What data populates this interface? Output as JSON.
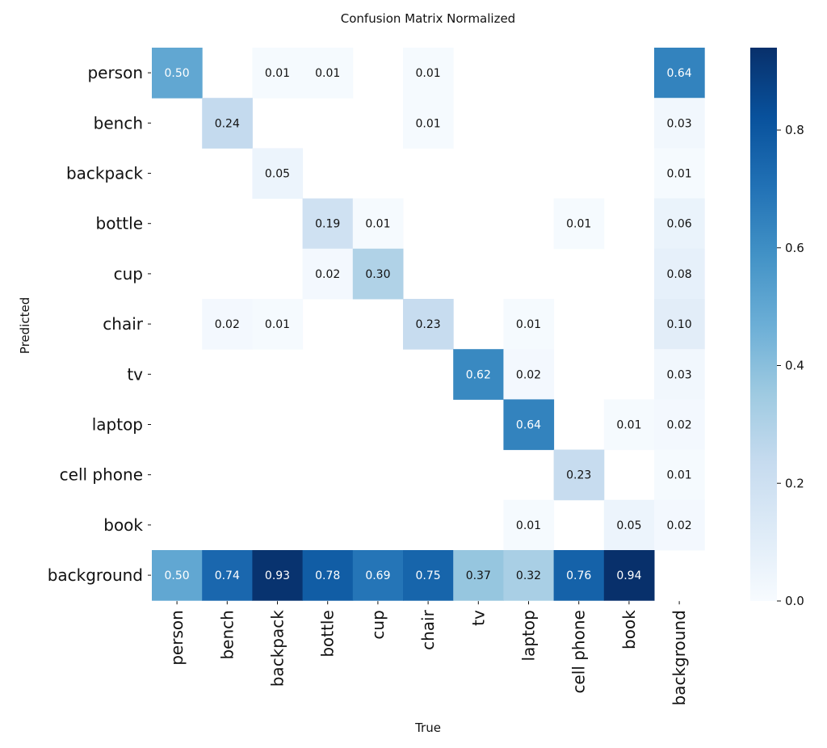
{
  "chart_data": {
    "type": "heatmap",
    "title": "Confusion Matrix Normalized",
    "xlabel": "True",
    "ylabel": "Predicted",
    "x_categories": [
      "person",
      "bench",
      "backpack",
      "bottle",
      "cup",
      "chair",
      "tv",
      "laptop",
      "cell phone",
      "book",
      "background"
    ],
    "y_categories": [
      "person",
      "bench",
      "backpack",
      "bottle",
      "cup",
      "chair",
      "tv",
      "laptop",
      "cell phone",
      "book",
      "background"
    ],
    "values": [
      [
        0.5,
        null,
        0.01,
        0.01,
        null,
        0.01,
        null,
        null,
        null,
        null,
        0.64
      ],
      [
        null,
        0.24,
        null,
        null,
        null,
        0.01,
        null,
        null,
        null,
        null,
        0.03
      ],
      [
        null,
        null,
        0.05,
        null,
        null,
        null,
        null,
        null,
        null,
        null,
        0.01
      ],
      [
        null,
        null,
        null,
        0.19,
        0.01,
        null,
        null,
        null,
        0.01,
        null,
        0.06
      ],
      [
        null,
        null,
        null,
        0.02,
        0.3,
        null,
        null,
        null,
        null,
        null,
        0.08
      ],
      [
        null,
        0.02,
        0.01,
        null,
        null,
        0.23,
        null,
        0.01,
        null,
        null,
        0.1
      ],
      [
        null,
        null,
        null,
        null,
        null,
        null,
        0.62,
        0.02,
        null,
        null,
        0.03
      ],
      [
        null,
        null,
        null,
        null,
        null,
        null,
        null,
        0.64,
        null,
        0.01,
        0.02
      ],
      [
        null,
        null,
        null,
        null,
        null,
        null,
        null,
        null,
        0.23,
        null,
        0.01
      ],
      [
        null,
        null,
        null,
        null,
        null,
        null,
        null,
        0.01,
        null,
        0.05,
        0.02
      ],
      [
        0.5,
        0.74,
        0.93,
        0.78,
        0.69,
        0.75,
        0.37,
        0.32,
        0.76,
        0.94,
        null
      ]
    ],
    "color_range": [
      0.0,
      0.94
    ],
    "colormap": "Blues",
    "colorbar_ticks": [
      "0.0",
      "0.2",
      "0.4",
      "0.6",
      "0.8"
    ],
    "colorbar_tick_values": [
      0.0,
      0.2,
      0.4,
      0.6,
      0.8
    ]
  }
}
